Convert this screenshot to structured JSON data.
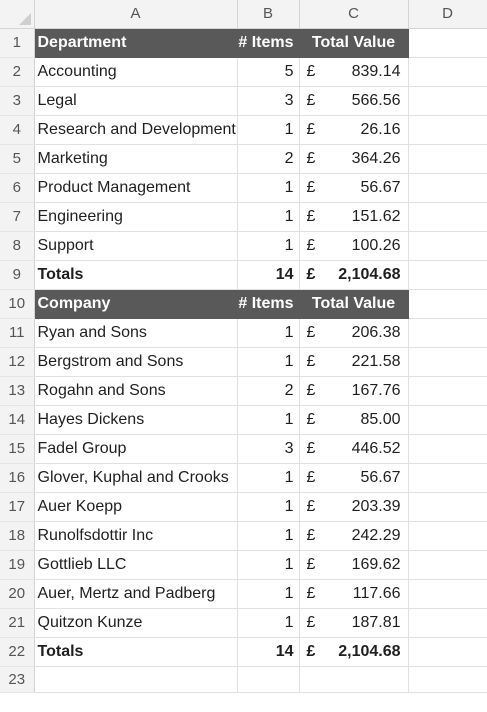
{
  "columns": [
    "A",
    "B",
    "C",
    "D"
  ],
  "currency_symbol": "£",
  "row_numbers": [
    "1",
    "2",
    "3",
    "4",
    "5",
    "6",
    "7",
    "8",
    "9",
    "10",
    "11",
    "12",
    "13",
    "14",
    "15",
    "16",
    "17",
    "18",
    "19",
    "20",
    "21",
    "22",
    "23"
  ],
  "department_table": {
    "headers": {
      "name": "Department",
      "items": "# Items",
      "value": "Total Value"
    },
    "rows": [
      {
        "name": "Accounting",
        "items": "5",
        "value": "839.14"
      },
      {
        "name": "Legal",
        "items": "3",
        "value": "566.56"
      },
      {
        "name": "Research and Development",
        "items": "1",
        "value": "26.16"
      },
      {
        "name": "Marketing",
        "items": "2",
        "value": "364.26"
      },
      {
        "name": "Product Management",
        "items": "1",
        "value": "56.67"
      },
      {
        "name": "Engineering",
        "items": "1",
        "value": "151.62"
      },
      {
        "name": "Support",
        "items": "1",
        "value": "100.26"
      }
    ],
    "totals": {
      "label": "Totals",
      "items": "14",
      "value": "2,104.68"
    }
  },
  "company_table": {
    "headers": {
      "name": "Company",
      "items": "# Items",
      "value": "Total Value"
    },
    "rows": [
      {
        "name": "Ryan and Sons",
        "items": "1",
        "value": "206.38"
      },
      {
        "name": "Bergstrom and Sons",
        "items": "1",
        "value": "221.58"
      },
      {
        "name": "Rogahn and Sons",
        "items": "2",
        "value": "167.76"
      },
      {
        "name": "Hayes Dickens",
        "items": "1",
        "value": "85.00"
      },
      {
        "name": "Fadel Group",
        "items": "3",
        "value": "446.52"
      },
      {
        "name": "Glover, Kuphal and Crooks",
        "items": "1",
        "value": "56.67"
      },
      {
        "name": "Auer Koepp",
        "items": "1",
        "value": "203.39"
      },
      {
        "name": "Runolfsdottir Inc",
        "items": "1",
        "value": "242.29"
      },
      {
        "name": "Gottlieb LLC",
        "items": "1",
        "value": "169.62"
      },
      {
        "name": "Auer, Mertz and Padberg",
        "items": "1",
        "value": "117.66"
      },
      {
        "name": "Quitzon Kunze",
        "items": "1",
        "value": "187.81"
      }
    ],
    "totals": {
      "label": "Totals",
      "items": "14",
      "value": "2,104.68"
    }
  },
  "colors": {
    "header_fill": "#595959",
    "header_text": "#ffffff",
    "gridline": "#e1e1e1",
    "row_col_header_bg": "#f3f3f3"
  }
}
